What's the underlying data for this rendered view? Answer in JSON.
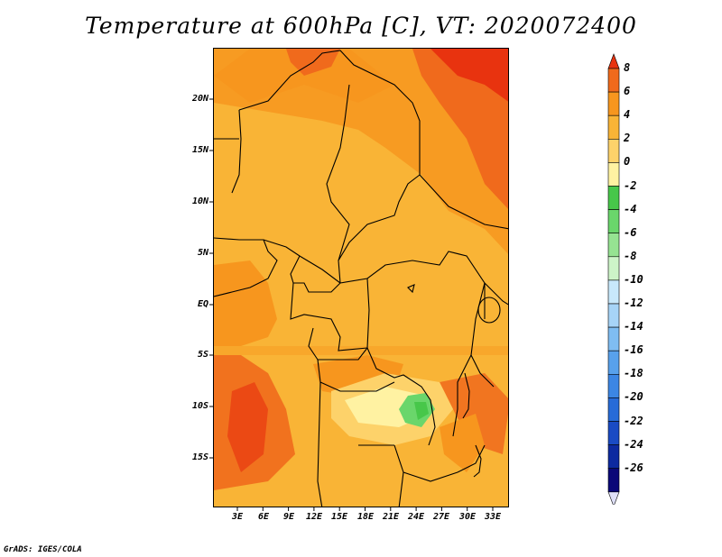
{
  "title": "Temperature at 600hPa [C], VT: 2020072400",
  "credit": "GrADS: IGES/COLA",
  "axes": {
    "x_ticks": [
      "3E",
      "6E",
      "9E",
      "12E",
      "15E",
      "18E",
      "21E",
      "24E",
      "27E",
      "30E",
      "33E"
    ],
    "y_ticks": [
      "20N",
      "15N",
      "10N",
      "5N",
      "EQ",
      "5S",
      "10S",
      "15S"
    ],
    "lon_range": [
      0,
      35
    ],
    "lat_range": [
      -20,
      25
    ]
  },
  "colorbar": {
    "labels": [
      "8",
      "6",
      "4",
      "2",
      "0",
      "-2",
      "-4",
      "-6",
      "-8",
      "-10",
      "-12",
      "-14",
      "-16",
      "-18",
      "-20",
      "-22",
      "-24",
      "-26"
    ],
    "colors": [
      "#e8330f",
      "#f06a1c",
      "#f7961e",
      "#f9b436",
      "#fdd26a",
      "#fff2a2",
      "#47c74a",
      "#6ad66b",
      "#96e392",
      "#cdf4c8",
      "#c8e8fb",
      "#a7d4f7",
      "#7fbdf2",
      "#58a1ec",
      "#3c86e4",
      "#276bd8",
      "#1a4bc4",
      "#0d2aa0",
      "#0a0878",
      "#dfe0f8"
    ],
    "unit": "C"
  },
  "legend_colors": {
    "land_bg": "#f9b436",
    "border": "#000000"
  }
}
